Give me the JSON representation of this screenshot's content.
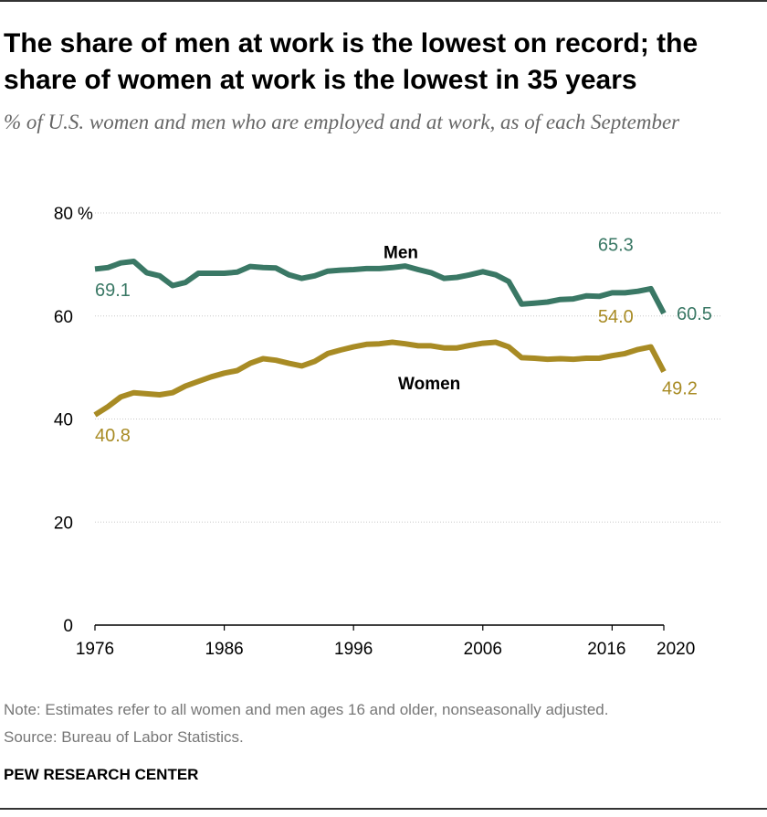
{
  "header": {
    "title": "The share of men at work is the lowest on record; the share of women at work is the lowest in 35 years",
    "subtitle": "% of U.S. women and men who are employed and at work, as of each September"
  },
  "footer": {
    "note": "Note: Estimates refer to all women and men ages 16 and older, nonseasonally adjusted.",
    "source": "Source: Bureau of Labor Statistics.",
    "brand": "PEW RESEARCH CENTER"
  },
  "colors": {
    "men": "#3a7865",
    "women": "#a88b24",
    "grid": "#c8c8c8",
    "axis": "#000000"
  },
  "chart_data": {
    "type": "line",
    "title": "The share of men at work is the lowest on record; the share of women at work is the lowest in 35 years",
    "ylabel": "%",
    "ylim": [
      0,
      80
    ],
    "xlim": [
      1976,
      2020
    ],
    "y_ticks": [
      0,
      20,
      40,
      60,
      80
    ],
    "y_tick_labels": [
      "0",
      "20",
      "40",
      "60",
      "80"
    ],
    "y_unit": "%",
    "x_ticks": [
      1976,
      1986,
      1996,
      2006,
      2016,
      2020
    ],
    "x_tick_labels": [
      "1976",
      "1986",
      "1996",
      "2006",
      "2016",
      "2020"
    ],
    "grid": true,
    "x": [
      1976,
      1977,
      1978,
      1979,
      1980,
      1981,
      1982,
      1983,
      1984,
      1985,
      1986,
      1987,
      1988,
      1989,
      1990,
      1991,
      1992,
      1993,
      1994,
      1995,
      1996,
      1997,
      1998,
      1999,
      2000,
      2001,
      2002,
      2003,
      2004,
      2005,
      2006,
      2007,
      2008,
      2009,
      2010,
      2011,
      2012,
      2013,
      2014,
      2015,
      2016,
      2017,
      2018,
      2019,
      2020
    ],
    "series": [
      {
        "name": "Men",
        "color": "#3a7865",
        "values": [
          69.1,
          69.4,
          70.3,
          70.6,
          68.4,
          67.8,
          65.9,
          66.5,
          68.3,
          68.3,
          68.3,
          68.5,
          69.6,
          69.4,
          69.3,
          68.0,
          67.3,
          67.8,
          68.7,
          68.9,
          69.0,
          69.2,
          69.2,
          69.4,
          69.7,
          69.0,
          68.4,
          67.3,
          67.5,
          68.0,
          68.6,
          68.0,
          66.7,
          62.3,
          62.5,
          62.7,
          63.2,
          63.3,
          63.9,
          63.8,
          64.5,
          64.5,
          64.8,
          65.3,
          60.5
        ],
        "annotations": [
          {
            "x": 1976,
            "label": "69.1"
          },
          {
            "x": 2019,
            "label": "65.3"
          },
          {
            "x": 2020,
            "label": "60.5"
          }
        ]
      },
      {
        "name": "Women",
        "color": "#a88b24",
        "values": [
          40.8,
          42.4,
          44.3,
          45.1,
          44.9,
          44.7,
          45.1,
          46.4,
          47.3,
          48.2,
          48.9,
          49.4,
          50.8,
          51.7,
          51.4,
          50.8,
          50.3,
          51.2,
          52.7,
          53.4,
          54.0,
          54.5,
          54.6,
          54.9,
          54.6,
          54.2,
          54.2,
          53.8,
          53.8,
          54.3,
          54.7,
          54.9,
          54.0,
          51.9,
          51.8,
          51.6,
          51.7,
          51.6,
          51.8,
          51.8,
          52.3,
          52.7,
          53.5,
          54.0,
          49.2
        ],
        "annotations": [
          {
            "x": 1976,
            "label": "40.8"
          },
          {
            "x": 2019,
            "label": "54.0"
          },
          {
            "x": 2020,
            "label": "49.2"
          }
        ]
      }
    ]
  }
}
